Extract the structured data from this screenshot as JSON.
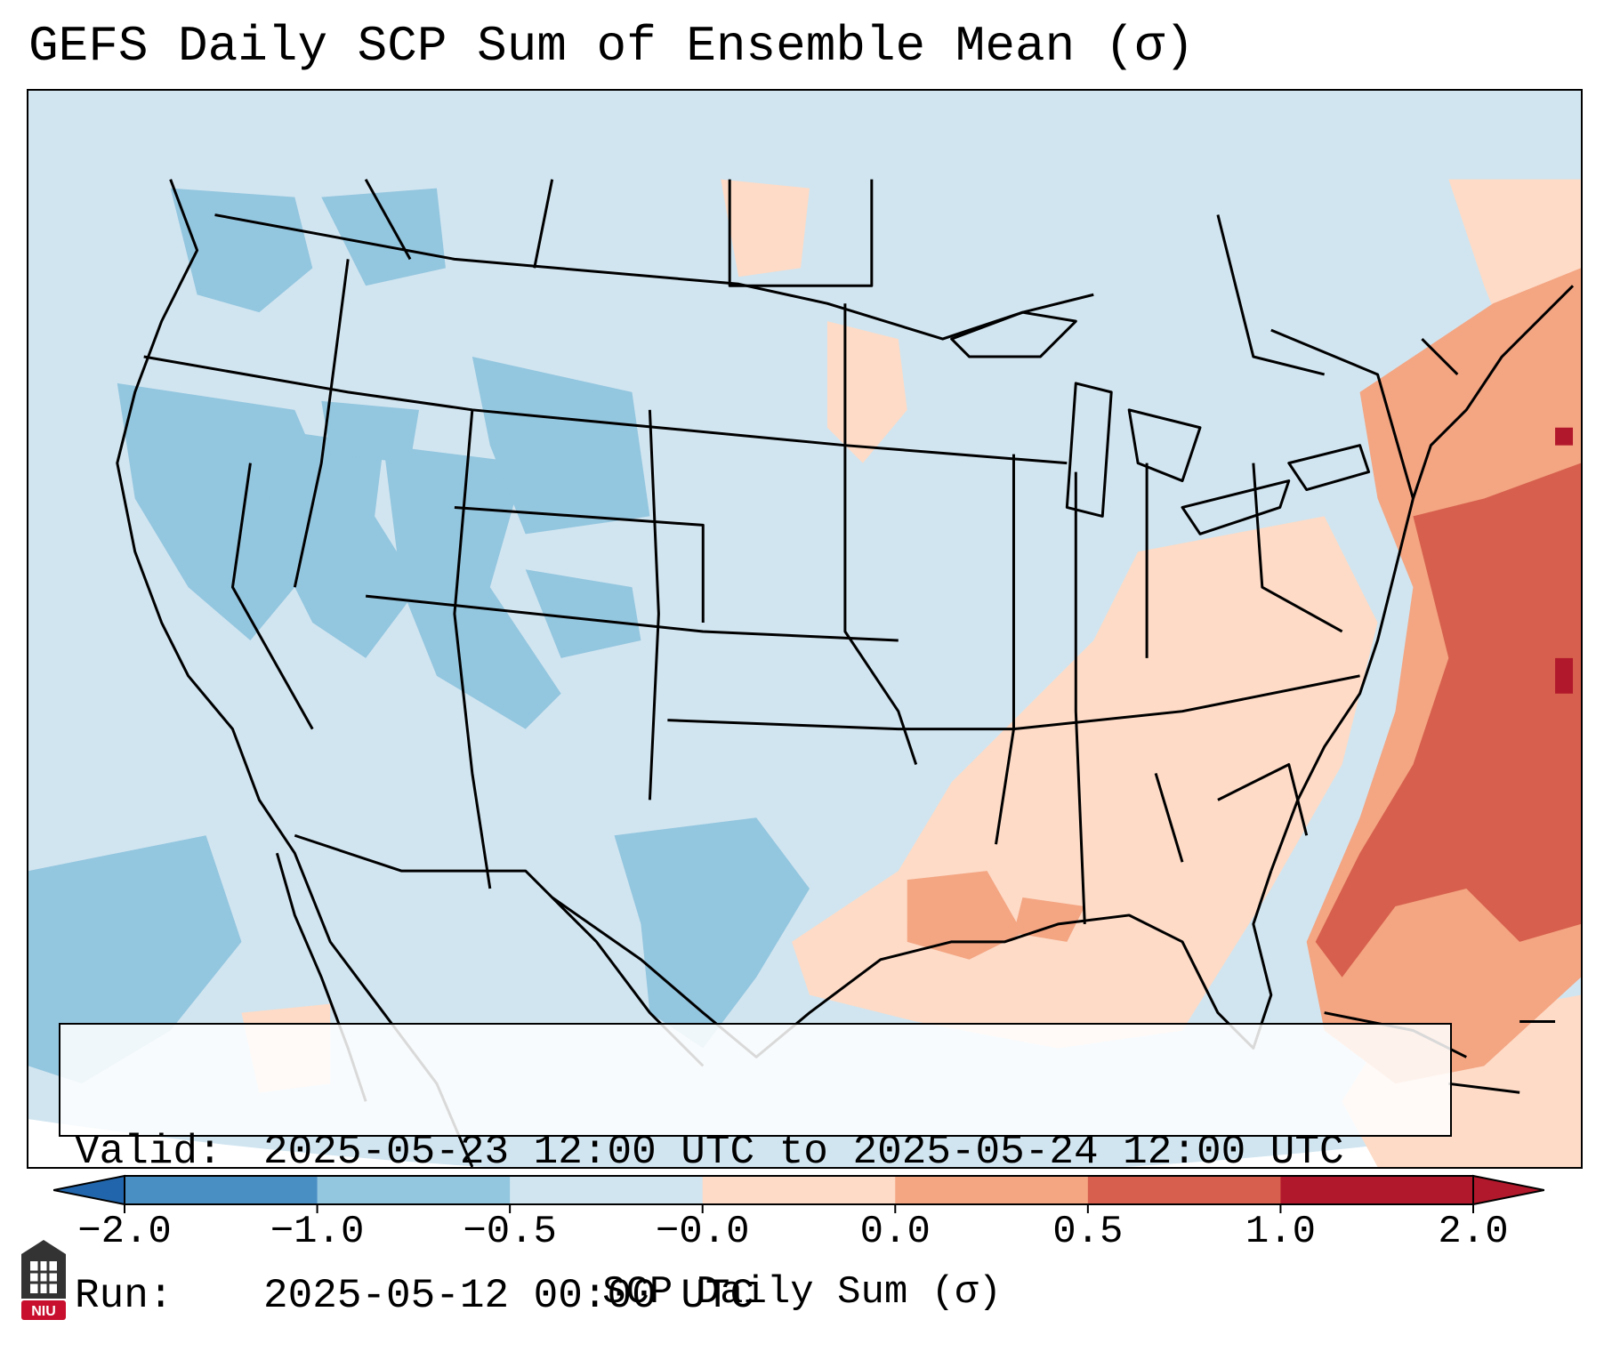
{
  "title": "GEFS Daily SCP Sum of Ensemble Mean (σ)",
  "info_box": {
    "valid_key": "Valid:",
    "valid_value": "2025-05-23 12:00 UTC to 2025-05-24 12:00 UTC",
    "run_key": "Run:",
    "run_value": "2025-05-12 00:00 UTC"
  },
  "colorbar": {
    "label": "SCP Daily Sum (σ)",
    "ticks": [
      "−2.0",
      "−1.0",
      "−0.5",
      "−0.0",
      "0.0",
      "0.5",
      "1.0",
      "2.0"
    ],
    "colors": [
      "#4a8fc4",
      "#93c6df",
      "#d1e5f0",
      "#fddbc7",
      "#f4a582",
      "#d6604d",
      "#b2182b"
    ],
    "extend_low_color": "#2166ac",
    "extend_high_color": "#b2182b"
  },
  "logo": {
    "text": "NIU",
    "color": "#c8102e"
  },
  "map": {
    "description_colors": {
      "neutral_blue": "#d1e5f0",
      "blue": "#93c6df",
      "light_red": "#fddbc7",
      "red": "#f4a582",
      "dark_red": "#d6604d",
      "max_red": "#b2182b"
    }
  }
}
